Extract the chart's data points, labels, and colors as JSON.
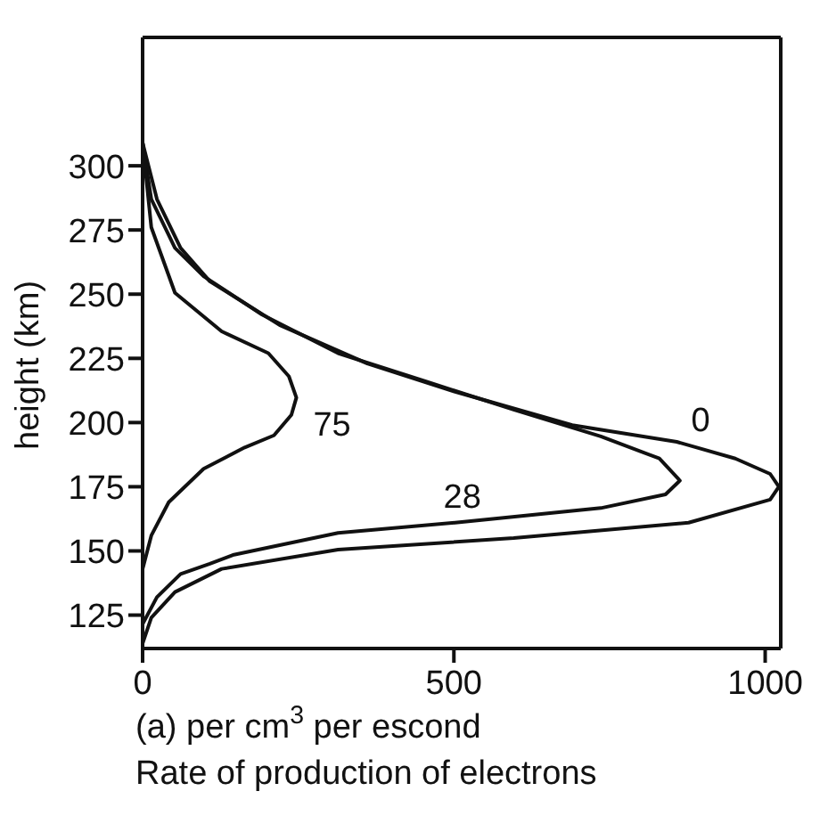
{
  "chart_data": {
    "type": "line",
    "xlabel": "(a) per cm$^{3}$ per escond\nRate of production of electrons",
    "ylabel": "height (km)",
    "xlim": [
      0,
      1025
    ],
    "xticks": [
      0,
      500,
      1000
    ],
    "ylim": [
      112,
      350
    ],
    "yticks": [
      125,
      150,
      175,
      200,
      225,
      250,
      275,
      300
    ],
    "legend": false,
    "marker": "none",
    "line_style": "solid",
    "series": [
      {
        "name": "0",
        "color": "#111111",
        "x": [
          0,
          23,
          61,
          108,
          220,
          361,
          502,
          690,
          858,
          952,
          1008,
          1022,
          1008,
          877,
          596,
          314,
          127,
          52,
          14,
          0
        ],
        "values": [
          309,
          287,
          268,
          255,
          238,
          223,
          212,
          199,
          192.5,
          186,
          180,
          175,
          170,
          161,
          155,
          150.5,
          143,
          134,
          124,
          114
        ]
      },
      {
        "name": "28",
        "color": "#111111",
        "x": [
          0,
          14,
          52,
          98,
          192,
          314,
          455,
          596,
          736,
          830,
          863,
          840,
          736,
          502,
          314,
          145,
          108,
          61,
          23,
          0
        ],
        "values": [
          309,
          287,
          268,
          257,
          242,
          227,
          216,
          205,
          194.6,
          186,
          177.4,
          172,
          166.7,
          161,
          157,
          148.4,
          145,
          141,
          132,
          121.5
        ]
      },
      {
        "name": "75",
        "color": "#111111",
        "x": [
          0,
          14,
          52,
          127,
          202,
          235,
          247,
          239,
          211,
          164,
          98,
          42,
          14,
          0
        ],
        "values": [
          309,
          276,
          250.5,
          235.5,
          227,
          218,
          209.7,
          203,
          195,
          190.3,
          182,
          169,
          156,
          143
        ]
      }
    ]
  }
}
